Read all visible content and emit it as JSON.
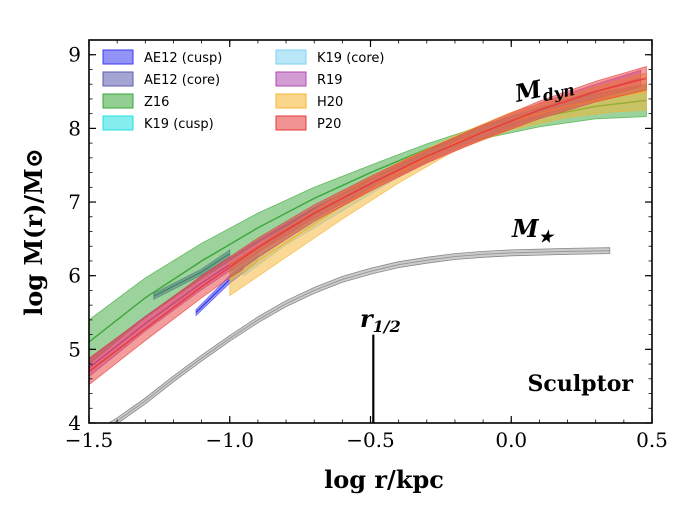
{
  "chart_data": {
    "type": "area",
    "title": "",
    "xlabel": "log r/kpc",
    "ylabel": "log M(r)/M⊙",
    "xlim": [
      -1.5,
      0.5
    ],
    "ylim": [
      4,
      9.2
    ],
    "grid": false,
    "x_ticks": [
      -1.5,
      -1.0,
      -0.5,
      0.0,
      0.5
    ],
    "x_tick_labels": [
      "−1.5",
      "−1.0",
      "−0.5",
      "0.0",
      "0.5"
    ],
    "y_ticks": [
      4,
      5,
      6,
      7,
      8,
      9
    ],
    "y_tick_labels": [
      "4",
      "5",
      "6",
      "7",
      "8",
      "9"
    ],
    "legend": {
      "placement": "top-left",
      "columns": [
        [
          "AE12 (cusp)",
          "AE12 (core)",
          "Z16",
          "K19 (cusp)"
        ],
        [
          "K19 (core)",
          "R19",
          "H20",
          "P20"
        ]
      ]
    },
    "series": [
      {
        "name": "AE12 (cusp)",
        "color": "#3b3bf0",
        "x": [
          -1.12,
          -1.0,
          -0.9
        ],
        "y": [
          5.5,
          5.95,
          6.25
        ],
        "width": [
          0.04,
          0.05,
          0.06
        ]
      },
      {
        "name": "AE12 (core)",
        "color": "#5b5bb0",
        "x": [
          -1.27,
          -1.1,
          -1.0
        ],
        "y": [
          5.72,
          6.05,
          6.3
        ],
        "width": [
          0.04,
          0.04,
          0.05
        ]
      },
      {
        "name": "Z16",
        "color": "#3aa63a",
        "x": [
          -1.5,
          -1.3,
          -1.1,
          -0.9,
          -0.7,
          -0.5,
          -0.3,
          -0.1,
          0.1,
          0.3,
          0.48
        ],
        "y": [
          5.1,
          5.7,
          6.2,
          6.65,
          7.05,
          7.4,
          7.72,
          7.95,
          8.15,
          8.3,
          8.38
        ],
        "width": [
          0.3,
          0.27,
          0.24,
          0.2,
          0.15,
          0.1,
          0.07,
          0.09,
          0.13,
          0.17,
          0.22
        ]
      },
      {
        "name": "K19 (cusp)",
        "color": "#22e0e0",
        "x": [
          -1.0,
          -0.8,
          -0.6,
          -0.4,
          -0.2,
          0.0,
          0.3
        ],
        "y": [
          6.05,
          6.6,
          7.05,
          7.45,
          7.8,
          8.1,
          8.45
        ],
        "width": [
          0.08,
          0.07,
          0.06,
          0.05,
          0.05,
          0.06,
          0.07
        ]
      },
      {
        "name": "K19 (core)",
        "color": "#7fd3f0",
        "x": [
          -0.95,
          -0.8,
          -0.6,
          -0.4,
          -0.2,
          0.0,
          0.3
        ],
        "y": [
          6.1,
          6.5,
          6.95,
          7.4,
          7.78,
          8.08,
          8.43
        ],
        "width": [
          0.1,
          0.08,
          0.07,
          0.06,
          0.05,
          0.06,
          0.07
        ]
      },
      {
        "name": "R19",
        "color": "#b04ab0",
        "x": [
          -1.5,
          -1.3,
          -1.1,
          -0.9,
          -0.7,
          -0.5,
          -0.3,
          -0.1,
          0.1,
          0.3,
          0.46
        ],
        "y": [
          4.75,
          5.35,
          5.9,
          6.4,
          6.85,
          7.25,
          7.62,
          7.95,
          8.25,
          8.5,
          8.68
        ],
        "width": [
          0.12,
          0.1,
          0.09,
          0.08,
          0.07,
          0.07,
          0.07,
          0.08,
          0.09,
          0.1,
          0.11
        ]
      },
      {
        "name": "H20",
        "color": "#f5b430",
        "x": [
          -1.0,
          -0.8,
          -0.6,
          -0.4,
          -0.2,
          0.0,
          0.2,
          0.35,
          0.48
        ],
        "y": [
          5.95,
          6.45,
          6.95,
          7.4,
          7.8,
          8.1,
          8.3,
          8.42,
          8.5
        ],
        "width": [
          0.22,
          0.2,
          0.18,
          0.14,
          0.1,
          0.12,
          0.15,
          0.2,
          0.25
        ]
      },
      {
        "name": "P20",
        "color": "#e83a3a",
        "x": [
          -1.5,
          -1.3,
          -1.1,
          -0.9,
          -0.7,
          -0.5,
          -0.3,
          -0.1,
          0.1,
          0.3,
          0.48
        ],
        "y": [
          4.7,
          5.28,
          5.85,
          6.38,
          6.85,
          7.25,
          7.62,
          7.95,
          8.25,
          8.5,
          8.68
        ],
        "width": [
          0.18,
          0.16,
          0.15,
          0.13,
          0.11,
          0.1,
          0.09,
          0.1,
          0.12,
          0.14,
          0.16
        ]
      }
    ],
    "stellar_mass": {
      "name": "M★",
      "color": "#aaaaaa",
      "x": [
        -1.5,
        -1.4,
        -1.3,
        -1.2,
        -1.1,
        -1.0,
        -0.9,
        -0.8,
        -0.7,
        -0.6,
        -0.5,
        -0.4,
        -0.3,
        -0.2,
        -0.1,
        0.0,
        0.1,
        0.2,
        0.35
      ],
      "y": [
        3.8,
        4.03,
        4.3,
        4.6,
        4.88,
        5.15,
        5.4,
        5.62,
        5.8,
        5.95,
        6.06,
        6.15,
        6.21,
        6.26,
        6.29,
        6.31,
        6.32,
        6.33,
        6.34
      ],
      "width": 0.04
    },
    "half_light_radius": {
      "x": -0.49,
      "y_from": 4.0,
      "y_to": 5.2
    },
    "annotations": {
      "mdyn_main": "M",
      "mdyn_sub": "dyn",
      "mstar_main": "M",
      "mstar_sub": "★",
      "rhalf_main": "r",
      "rhalf_sub": "1/2",
      "galaxy": "Sculptor"
    }
  }
}
